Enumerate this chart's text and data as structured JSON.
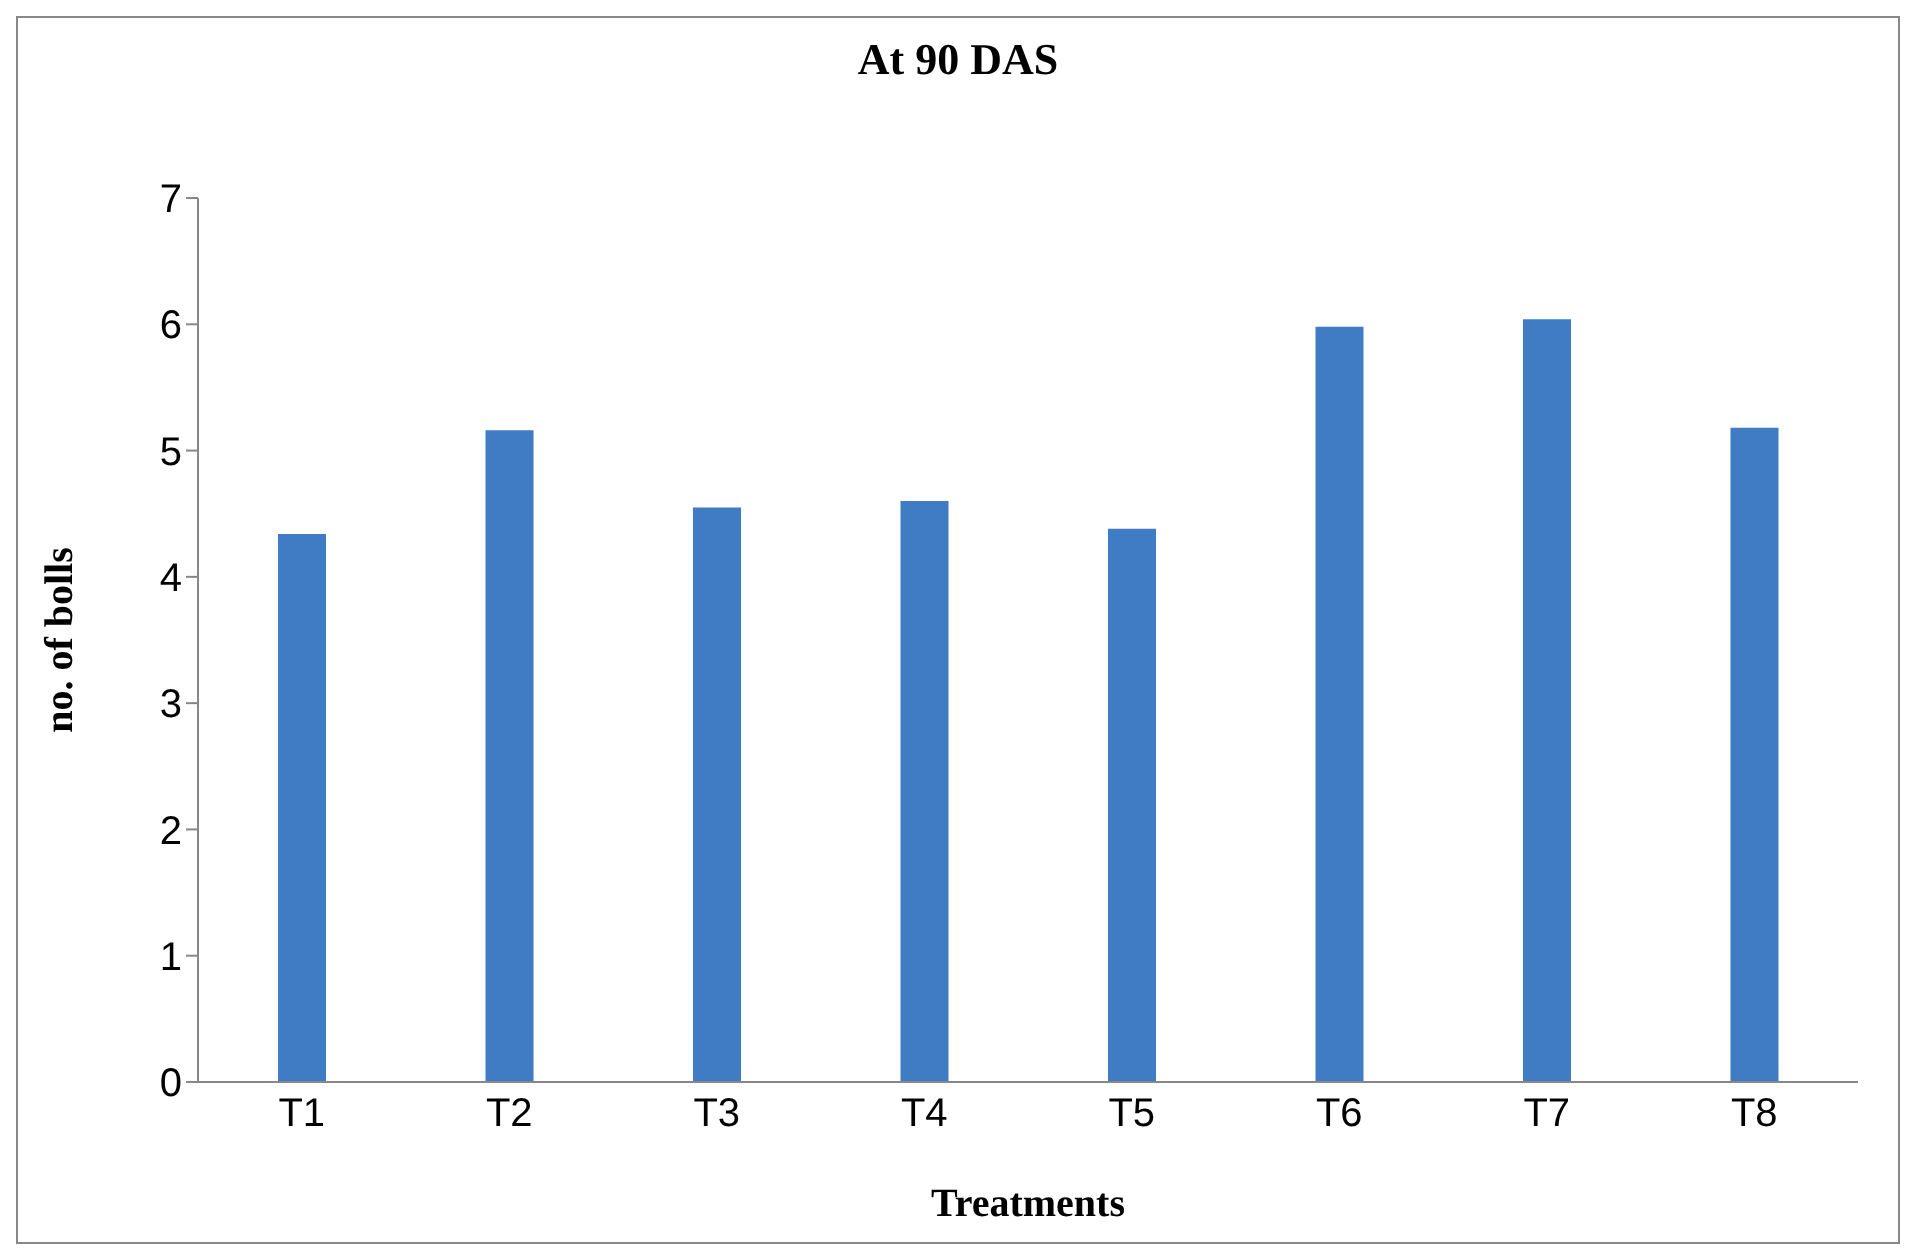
{
  "chart_data": {
    "type": "bar",
    "title": "At 90 DAS",
    "xlabel": "Treatments",
    "ylabel": "no. of bolls",
    "categories": [
      "T1",
      "T2",
      "T3",
      "T4",
      "T5",
      "T6",
      "T7",
      "T8"
    ],
    "values": [
      4.34,
      5.16,
      4.55,
      4.6,
      4.38,
      5.98,
      6.04,
      5.18
    ],
    "color": "#3f7cc4",
    "ylim": [
      0,
      7
    ],
    "yticks": [
      0,
      1,
      2,
      3,
      4,
      5,
      6,
      7
    ],
    "grid": false,
    "legend": false
  }
}
